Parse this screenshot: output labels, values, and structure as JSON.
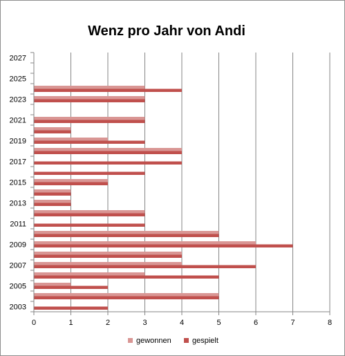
{
  "chart_data": {
    "type": "bar",
    "orientation": "horizontal",
    "title": "Wenz pro Jahr von Andi",
    "xlabel": "",
    "ylabel": "",
    "xlim": [
      0,
      8
    ],
    "x_ticks": [
      0,
      1,
      2,
      3,
      4,
      5,
      6,
      7,
      8
    ],
    "categories": [
      "2003",
      "2004",
      "2005",
      "2006",
      "2007",
      "2008",
      "2009",
      "2010",
      "2011",
      "2012",
      "2013",
      "2014",
      "2015",
      "2016",
      "2017",
      "2018",
      "2019",
      "2020",
      "2021",
      "2022",
      "2023",
      "2024",
      "2025",
      "2026",
      "2027"
    ],
    "category_labels": [
      "2003",
      "",
      "2005",
      "",
      "2007",
      "",
      "2009",
      "",
      "2011",
      "",
      "2013",
      "",
      "2015",
      "",
      "2017",
      "",
      "2019",
      "",
      "2021",
      "",
      "2023",
      "",
      "2025",
      "",
      "2027"
    ],
    "series": [
      {
        "name": "gewonnen",
        "color": "#d99694",
        "values": [
          0,
          5,
          1,
          3,
          4,
          4,
          6,
          5,
          0,
          3,
          1,
          1,
          2,
          0,
          0,
          4,
          2,
          1,
          3,
          0,
          3,
          3,
          0,
          0,
          0
        ]
      },
      {
        "name": "gespielt",
        "color": "#c0504d",
        "values": [
          2,
          5,
          2,
          5,
          6,
          4,
          7,
          5,
          3,
          3,
          1,
          1,
          2,
          3,
          4,
          4,
          3,
          1,
          3,
          0,
          3,
          4,
          0,
          0,
          0
        ]
      }
    ],
    "grid": {
      "vertical": true,
      "horizontal": false
    },
    "legend": "bottom"
  }
}
